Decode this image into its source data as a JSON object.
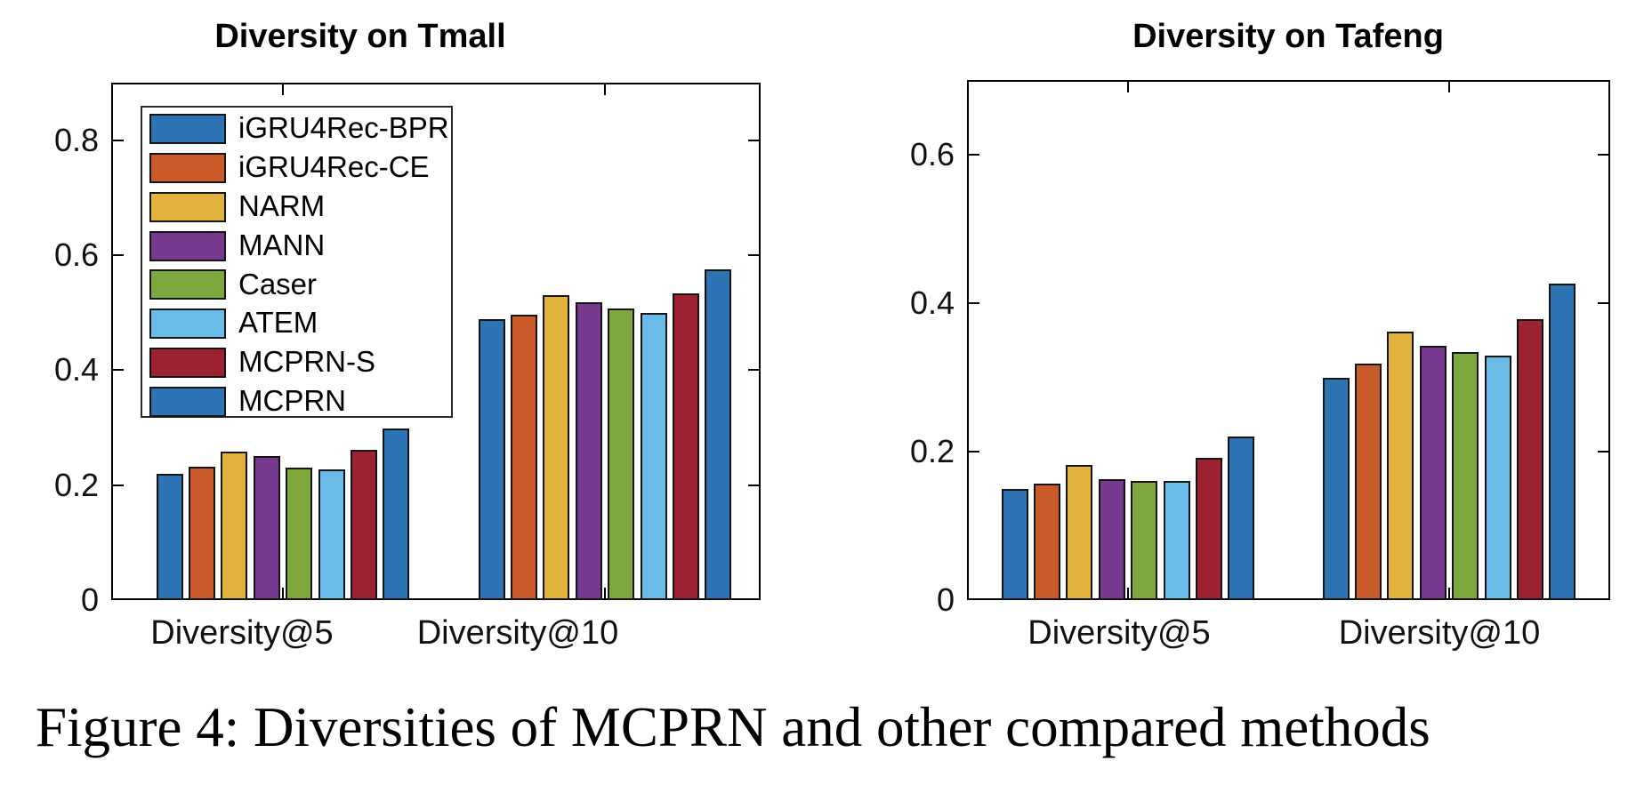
{
  "figure_caption": "Figure 4: Diversities of MCPRN and other compared methods",
  "text_color": "#000000",
  "chart_data": [
    {
      "type": "bar",
      "title": "Diversity on Tmall",
      "categories": [
        "Diversity@5",
        "Diversity@10"
      ],
      "series": [
        {
          "name": "iGRU4Rec-BPR",
          "color": "#2E74B5",
          "values": [
            0.22,
            0.488
          ]
        },
        {
          "name": "iGRU4Rec-CE",
          "color": "#C95B2B",
          "values": [
            0.232,
            0.497
          ]
        },
        {
          "name": "NARM",
          "color": "#E1B33D",
          "values": [
            0.259,
            0.53
          ]
        },
        {
          "name": "MANN",
          "color": "#76398E",
          "values": [
            0.25,
            0.518
          ]
        },
        {
          "name": "Caser",
          "color": "#7DA83E",
          "values": [
            0.23,
            0.507
          ]
        },
        {
          "name": "ATEM",
          "color": "#6BBBE8",
          "values": [
            0.227,
            0.499
          ]
        },
        {
          "name": "MCPRN-S",
          "color": "#9D2231",
          "values": [
            0.261,
            0.534
          ]
        },
        {
          "name": "MCPRN",
          "color": "#2E74B5",
          "values": [
            0.298,
            0.576
          ]
        }
      ],
      "ylim": [
        0,
        0.9
      ],
      "yticks": [
        0,
        0.2,
        0.4,
        0.6,
        0.8
      ],
      "grid": false,
      "legend_position": "top-left",
      "show_legend": true
    },
    {
      "type": "bar",
      "title": "Diversity on Tafeng",
      "categories": [
        "Diversity@5",
        "Diversity@10"
      ],
      "series": [
        {
          "name": "iGRU4Rec-BPR",
          "color": "#2E74B5",
          "values": [
            0.15,
            0.299
          ]
        },
        {
          "name": "iGRU4Rec-CE",
          "color": "#C95B2B",
          "values": [
            0.157,
            0.318
          ]
        },
        {
          "name": "NARM",
          "color": "#E1B33D",
          "values": [
            0.182,
            0.361
          ]
        },
        {
          "name": "MANN",
          "color": "#76398E",
          "values": [
            0.163,
            0.342
          ]
        },
        {
          "name": "Caser",
          "color": "#7DA83E",
          "values": [
            0.16,
            0.334
          ]
        },
        {
          "name": "ATEM",
          "color": "#6BBBE8",
          "values": [
            0.16,
            0.329
          ]
        },
        {
          "name": "MCPRN-S",
          "color": "#9D2231",
          "values": [
            0.191,
            0.378
          ]
        },
        {
          "name": "MCPRN",
          "color": "#2E74B5",
          "values": [
            0.22,
            0.426
          ]
        }
      ],
      "ylim": [
        0,
        0.7
      ],
      "yticks": [
        0,
        0.2,
        0.4,
        0.6
      ],
      "grid": false,
      "show_legend": false
    }
  ]
}
